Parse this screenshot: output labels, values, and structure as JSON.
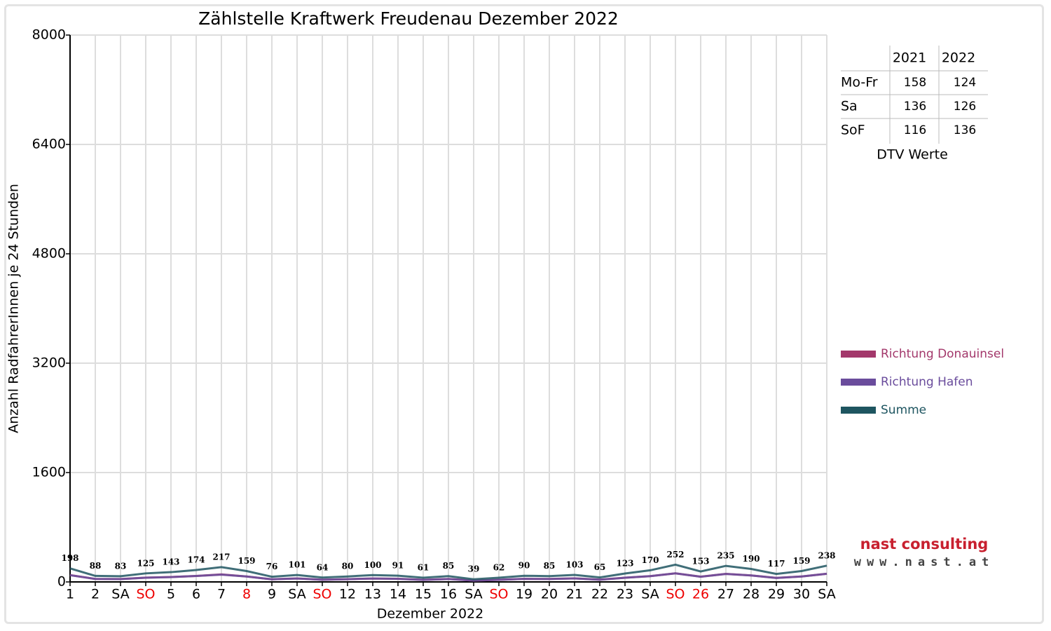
{
  "chart_data": {
    "type": "line",
    "title": "Zählstelle Kraftwerk Freudenau Dezember 2022",
    "x_label": "Dezember 2022",
    "y_label": "Anzahl RadfahrerInnen je 24 Stunden",
    "categories": [
      "1",
      "2",
      "SA",
      "SO",
      "5",
      "6",
      "7",
      "8",
      "9",
      "SA",
      "SO",
      "12",
      "13",
      "14",
      "15",
      "16",
      "SA",
      "SO",
      "19",
      "20",
      "21",
      "22",
      "23",
      "SA",
      "SO",
      "26",
      "27",
      "28",
      "29",
      "30",
      "SA"
    ],
    "category_colors": [
      "#000",
      "#000",
      "#000",
      "#e00",
      "#000",
      "#000",
      "#000",
      "#e00",
      "#000",
      "#000",
      "#e00",
      "#000",
      "#000",
      "#000",
      "#000",
      "#000",
      "#000",
      "#e00",
      "#000",
      "#000",
      "#000",
      "#000",
      "#000",
      "#000",
      "#e00",
      "#e00",
      "#000",
      "#000",
      "#000",
      "#000",
      "#000"
    ],
    "series": [
      {
        "name": "Richtung Donauinsel",
        "color": "#a3386b",
        "values": [
          100,
          44,
          42,
          63,
          72,
          87,
          110,
          80,
          38,
          51,
          32,
          40,
          50,
          46,
          31,
          43,
          20,
          31,
          45,
          43,
          52,
          33,
          62,
          85,
          126,
          77,
          118,
          95,
          59,
          80,
          119
        ]
      },
      {
        "name": "Richtung Hafen",
        "color": "#6a4c9c",
        "values": [
          98,
          44,
          41,
          62,
          71,
          87,
          107,
          79,
          38,
          50,
          32,
          40,
          50,
          45,
          30,
          42,
          19,
          31,
          45,
          42,
          51,
          32,
          61,
          85,
          126,
          76,
          117,
          95,
          58,
          79,
          119
        ]
      },
      {
        "name": "Summe",
        "color": "#1e5560",
        "values": [
          198,
          88,
          83,
          125,
          143,
          174,
          217,
          159,
          76,
          101,
          64,
          80,
          100,
          91,
          61,
          85,
          39,
          62,
          90,
          85,
          103,
          65,
          123,
          170,
          252,
          153,
          235,
          190,
          117,
          159,
          238
        ],
        "labeled": true
      }
    ],
    "ylim": [
      0,
      8000
    ],
    "yticks": [
      0,
      1600,
      3200,
      4800,
      6400,
      8000
    ],
    "grid": true,
    "dtv_table": {
      "caption": "DTV Werte",
      "columns": [
        "2021",
        "2022"
      ],
      "rows": [
        {
          "label": "Mo-Fr",
          "values": [
            158,
            124
          ]
        },
        {
          "label": "Sa",
          "values": [
            136,
            126
          ]
        },
        {
          "label": "SoF",
          "values": [
            116,
            136
          ]
        }
      ]
    },
    "logo": {
      "name": "nast consulting",
      "url": "www.nast.at"
    }
  }
}
